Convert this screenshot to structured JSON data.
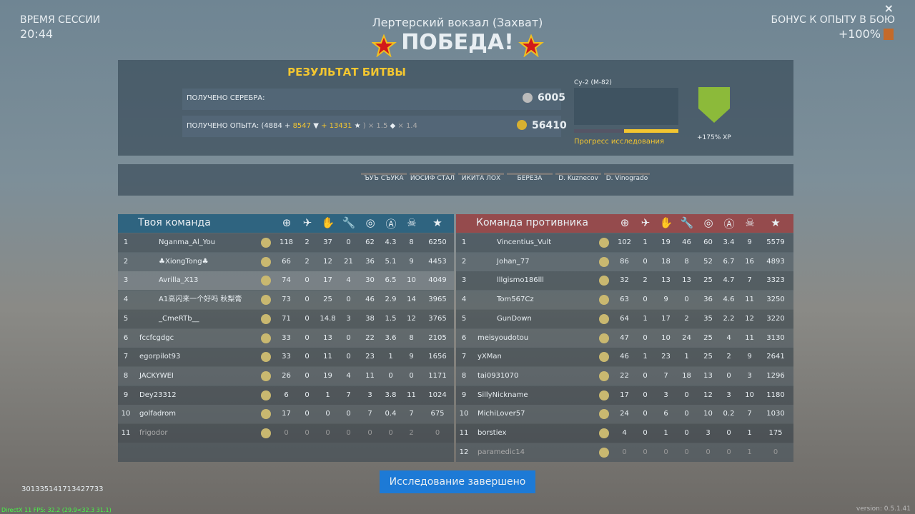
{
  "header": {
    "session_label": "ВРЕМЯ СЕССИИ",
    "session_time": "20:44",
    "mission": "Лертерский вокзал (Захват)",
    "result": "ПОБЕДА!",
    "bonus_label": "БОНУС К ОПЫТУ В БОЮ",
    "bonus_value": "+100%"
  },
  "results": {
    "title": "РЕЗУЛЬТАТ БИТВЫ",
    "silver_label": "ПОЛУЧЕНО СЕРЕБРА:",
    "silver": "6005",
    "exp_label": "ПОЛУЧЕНО ОПЫТА: (4884 +",
    "exp_part1": "8547",
    "exp_part2": "+ 13431",
    "exp_mult1": ") × 1.5",
    "exp_mult2": "× 1.4",
    "exp_total": "56410",
    "vehicle": "Су-2 (М-82)",
    "progress_label": "Прогресс исследования",
    "xp_bonus": "+175% XP"
  },
  "awards": [
    "ЪУЪ СЪУКА",
    "ИОСИФ СТАЛ",
    "ИКИТА ЛОХ",
    "БЕРЁЗА",
    "D. Kuznecov",
    "D. Vinogrado"
  ],
  "teams": [
    {
      "title": "Твоя команда",
      "rows": [
        [
          "1",
          "Nganma_Al_You",
          "118",
          "2",
          "37",
          "0",
          "62",
          "4.3",
          "8",
          "6250"
        ],
        [
          "2",
          "♣XiongTong♣",
          "66",
          "2",
          "12",
          "21",
          "36",
          "5.1",
          "9",
          "4453"
        ],
        [
          "3",
          "Avrilla_X13",
          "74",
          "0",
          "17",
          "4",
          "30",
          "6.5",
          "10",
          "4049"
        ],
        [
          "4",
          "A1高闪来一个好吗 秋梨膏",
          "73",
          "0",
          "25",
          "0",
          "46",
          "2.9",
          "14",
          "3965"
        ],
        [
          "5",
          "_CmeRTb__",
          "71",
          "0",
          "14.8",
          "3",
          "38",
          "1.5",
          "12",
          "3765"
        ],
        [
          "6",
          "fccfcgdgc",
          "33",
          "0",
          "13",
          "0",
          "22",
          "3.6",
          "8",
          "2105"
        ],
        [
          "7",
          "egorpilot93",
          "33",
          "0",
          "11",
          "0",
          "23",
          "1",
          "9",
          "1656"
        ],
        [
          "8",
          "JACKYWEI",
          "26",
          "0",
          "19",
          "4",
          "11",
          "0",
          "0",
          "1171"
        ],
        [
          "9",
          "Dey23312",
          "6",
          "0",
          "1",
          "7",
          "3",
          "3.8",
          "11",
          "1024"
        ],
        [
          "10",
          "golfadrom",
          "17",
          "0",
          "0",
          "0",
          "7",
          "0.4",
          "7",
          "675"
        ],
        [
          "11",
          "frigodor",
          "0",
          "0",
          "0",
          "0",
          "0",
          "0",
          "2",
          "0"
        ]
      ]
    },
    {
      "title": "Команда противника",
      "rows": [
        [
          "1",
          "Vincentius_Vult",
          "102",
          "1",
          "19",
          "46",
          "60",
          "3.4",
          "9",
          "5579"
        ],
        [
          "2",
          "Johan_77",
          "86",
          "0",
          "18",
          "8",
          "52",
          "6.7",
          "16",
          "4893"
        ],
        [
          "3",
          "lllgismo186lll",
          "32",
          "2",
          "13",
          "13",
          "25",
          "4.7",
          "7",
          "3323"
        ],
        [
          "4",
          "Tom567Cz",
          "63",
          "0",
          "9",
          "0",
          "36",
          "4.6",
          "11",
          "3250"
        ],
        [
          "5",
          "GunDown",
          "64",
          "1",
          "17",
          "2",
          "35",
          "2.2",
          "12",
          "3220"
        ],
        [
          "6",
          "meisyoudotou",
          "47",
          "0",
          "10",
          "24",
          "25",
          "4",
          "11",
          "3130"
        ],
        [
          "7",
          "yXMan",
          "46",
          "1",
          "23",
          "1",
          "25",
          "2",
          "9",
          "2641"
        ],
        [
          "8",
          "tai0931070",
          "22",
          "0",
          "7",
          "18",
          "13",
          "0",
          "3",
          "1296"
        ],
        [
          "9",
          "SillyNickname",
          "17",
          "0",
          "3",
          "0",
          "12",
          "3",
          "10",
          "1180"
        ],
        [
          "10",
          "MichiLover57",
          "24",
          "0",
          "6",
          "0",
          "10",
          "0.2",
          "7",
          "1030"
        ],
        [
          "11",
          "borstiex",
          "4",
          "0",
          "1",
          "0",
          "3",
          "0",
          "1",
          "175"
        ],
        [
          "12",
          "paramedic14",
          "0",
          "0",
          "0",
          "0",
          "0",
          "0",
          "1",
          "0"
        ]
      ]
    }
  ],
  "footer": {
    "button": "Исследование завершено",
    "session_id": "301335141713427733",
    "fps": "DirectX 11 FPS: 32.2 (29.9<32.3 31.1)",
    "version": "version: 0.5.1.41"
  }
}
